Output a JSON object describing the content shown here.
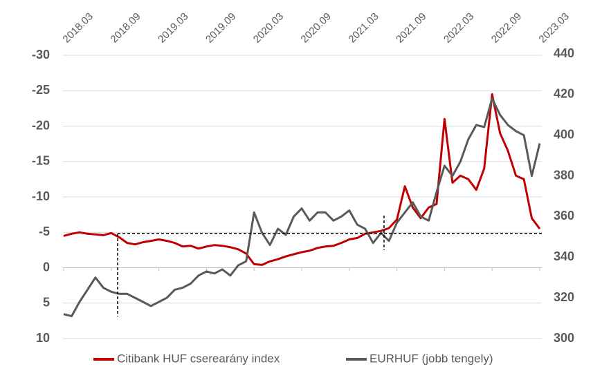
{
  "chart_data": {
    "type": "line",
    "x": [
      "2018.03",
      "2018.04",
      "2018.05",
      "2018.06",
      "2018.07",
      "2018.08",
      "2018.09",
      "2018.10",
      "2018.11",
      "2018.12",
      "2019.01",
      "2019.02",
      "2019.03",
      "2019.04",
      "2019.05",
      "2019.06",
      "2019.07",
      "2019.08",
      "2019.09",
      "2019.10",
      "2019.11",
      "2019.12",
      "2020.01",
      "2020.02",
      "2020.03",
      "2020.04",
      "2020.05",
      "2020.06",
      "2020.07",
      "2020.08",
      "2020.09",
      "2020.10",
      "2020.11",
      "2020.12",
      "2021.01",
      "2021.02",
      "2021.03",
      "2021.04",
      "2021.05",
      "2021.06",
      "2021.07",
      "2021.08",
      "2021.09",
      "2021.10",
      "2021.11",
      "2021.12",
      "2022.01",
      "2022.02",
      "2022.03",
      "2022.04",
      "2022.05",
      "2022.06",
      "2022.07",
      "2022.08",
      "2022.09",
      "2022.10",
      "2022.11",
      "2022.12",
      "2023.01",
      "2023.02",
      "2023.03"
    ],
    "xticks": [
      "2018.03",
      "2018.09",
      "2019.03",
      "2019.09",
      "2020.03",
      "2020.09",
      "2021.03",
      "2021.09",
      "2022.03",
      "2022.09",
      "2023.03"
    ],
    "series": [
      {
        "name": "Citibank HUF cserearány index",
        "color": "#c00000",
        "axis": "y",
        "values": [
          -4.5,
          -4.8,
          -5.0,
          -4.8,
          -4.7,
          -4.6,
          -4.9,
          -4.3,
          -3.5,
          -3.3,
          -3.6,
          -3.8,
          -4.0,
          -3.8,
          -3.5,
          -3.0,
          -3.1,
          -2.7,
          -3.0,
          -3.2,
          -3.1,
          -2.9,
          -2.6,
          -2.0,
          -0.5,
          -0.4,
          -0.9,
          -1.2,
          -1.6,
          -1.9,
          -2.2,
          -2.4,
          -2.8,
          -3.0,
          -3.1,
          -3.5,
          -4.0,
          -4.2,
          -4.8,
          -5.0,
          -5.2,
          -5.6,
          -6.8,
          -11.5,
          -8.5,
          -7.0,
          -8.5,
          -9.0,
          -21.0,
          -12.0,
          -13.0,
          -12.5,
          -11.0,
          -14.0,
          -24.5,
          -19.0,
          -16.5,
          -13.0,
          -12.5,
          -7.0,
          -5.5
        ]
      },
      {
        "name": "EURHUF (jobb tengely)",
        "color": "#595959",
        "axis": "y2",
        "values": [
          312,
          311,
          318,
          324,
          330,
          325,
          323,
          322,
          322,
          320,
          318,
          316,
          318,
          320,
          324,
          325,
          327,
          331,
          333,
          332,
          334,
          331,
          336,
          338,
          362,
          352,
          346,
          354,
          351,
          360,
          364,
          358,
          362,
          362,
          358,
          360,
          363,
          356,
          354,
          347,
          352,
          348,
          357,
          362,
          367,
          360,
          358,
          372,
          385,
          380,
          387,
          398,
          405,
          404,
          418,
          410,
          405,
          402,
          400,
          380,
          396
        ]
      }
    ],
    "ylim": [
      -30,
      10
    ],
    "y_inverted": true,
    "yticks": [
      -30,
      -25,
      -20,
      -15,
      -10,
      -5,
      0,
      5,
      10
    ],
    "y2lim": [
      300,
      440
    ],
    "y2ticks": [
      300,
      320,
      340,
      360,
      380,
      400,
      420,
      440
    ],
    "grid": true
  }
}
